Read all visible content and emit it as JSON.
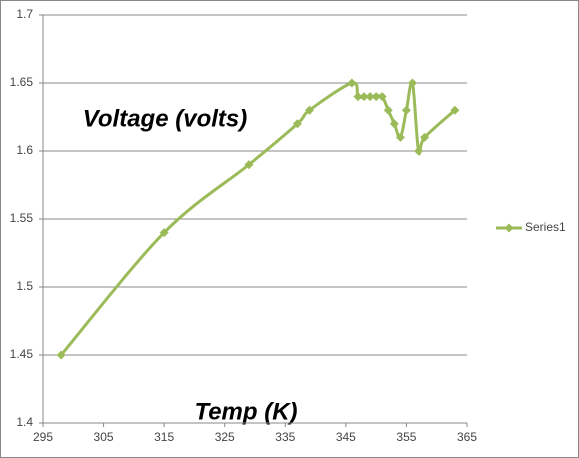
{
  "chart_data": {
    "type": "line",
    "y_label": "Voltage (volts)",
    "x_label": "Temp (K)",
    "x": [
      298,
      315,
      329,
      337,
      339,
      346,
      347,
      348,
      349,
      350,
      351,
      352,
      353,
      354,
      355,
      356,
      357,
      358,
      363
    ],
    "series": [
      {
        "name": "Series1",
        "color": "#9bbb59",
        "values": [
          1.45,
          1.54,
          1.59,
          1.62,
          1.63,
          1.65,
          1.64,
          1.64,
          1.64,
          1.64,
          1.64,
          1.63,
          1.62,
          1.61,
          1.63,
          1.65,
          1.6,
          1.61,
          1.63
        ]
      }
    ],
    "xlim": [
      295,
      365
    ],
    "xticks": [
      295,
      305,
      315,
      325,
      335,
      345,
      355,
      365
    ],
    "ylim": [
      1.4,
      1.7
    ],
    "yticks": [
      1.4,
      1.45,
      1.5,
      1.55,
      1.6,
      1.65,
      1.7
    ],
    "grid": true,
    "legend": "right",
    "smooth": true
  }
}
